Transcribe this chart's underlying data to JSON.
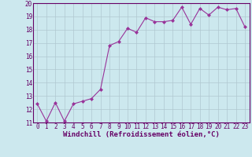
{
  "x": [
    0,
    1,
    2,
    3,
    4,
    5,
    6,
    7,
    8,
    9,
    10,
    11,
    12,
    13,
    14,
    15,
    16,
    17,
    18,
    19,
    20,
    21,
    22,
    23
  ],
  "y": [
    12.4,
    11.1,
    12.5,
    11.1,
    12.4,
    12.6,
    12.8,
    13.5,
    16.8,
    17.1,
    18.1,
    17.8,
    18.9,
    18.6,
    18.6,
    18.7,
    19.7,
    18.4,
    19.6,
    19.1,
    19.7,
    19.5,
    19.6,
    18.2
  ],
  "line_color": "#993399",
  "marker": "D",
  "marker_size": 2,
  "bg_color": "#cce8ee",
  "grid_color": "#b0c8d0",
  "xlabel": "Windchill (Refroidissement éolien,°C)",
  "xlim": [
    -0.5,
    23.5
  ],
  "ylim": [
    11,
    20
  ],
  "yticks": [
    11,
    12,
    13,
    14,
    15,
    16,
    17,
    18,
    19,
    20
  ],
  "xticks": [
    0,
    1,
    2,
    3,
    4,
    5,
    6,
    7,
    8,
    9,
    10,
    11,
    12,
    13,
    14,
    15,
    16,
    17,
    18,
    19,
    20,
    21,
    22,
    23
  ],
  "tick_label_size": 5.5,
  "xlabel_size": 6.5,
  "line_width": 0.8
}
